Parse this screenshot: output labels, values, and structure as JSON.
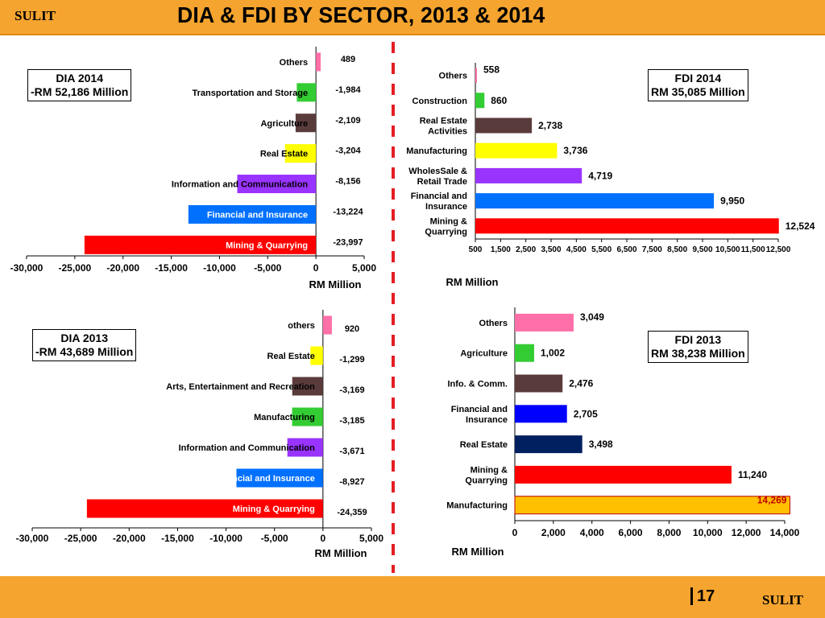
{
  "header": {
    "sulit": "SULIT",
    "title": "DIA & FDI BY SECTOR,  2013 & 2014"
  },
  "footer": {
    "page_number": "17",
    "sulit": "SULIT"
  },
  "chart_data": [
    {
      "id": "dia2014",
      "type": "bar",
      "orientation": "horizontal",
      "callout": [
        "DIA 2014",
        "-RM 52,186 Million"
      ],
      "categories": [
        "Others",
        "Transportation and Storage",
        "Agriculture",
        "Real Estate",
        "Information and Communication",
        "Financial and Insurance",
        "Mining & Quarrying"
      ],
      "values": [
        489,
        -1984,
        -2109,
        -3204,
        -8156,
        -13224,
        -23997
      ],
      "value_labels": [
        "489",
        "-1,984",
        "-2,109",
        "-3,204",
        "-8,156",
        "-13,224",
        "-23,997"
      ],
      "colors": [
        "#ff6fa8",
        "#33cc33",
        "#5a3b3b",
        "#ffff00",
        "#9933ff",
        "#0070ff",
        "#ff0000"
      ],
      "xlim": [
        -30000,
        5000
      ],
      "xticks": [
        -30000,
        -25000,
        -20000,
        -15000,
        -10000,
        -5000,
        0,
        5000
      ],
      "xtick_labels": [
        "-30,000",
        "-25,000",
        "-20,000",
        "-15,000",
        "-10,000",
        "-5,000",
        "0",
        "5,000"
      ],
      "xlabel": "RM Million"
    },
    {
      "id": "fdi2014",
      "type": "bar",
      "orientation": "horizontal",
      "callout": [
        "FDI  2014",
        "RM 35,085 Million"
      ],
      "categories": [
        "Others",
        "Construction",
        "Real Estate Activities",
        "Manufacturing",
        "WholesSale & Retail Trade",
        "Financial and Insurance",
        "Mining & Quarrying"
      ],
      "values": [
        558,
        860,
        2738,
        3736,
        4719,
        9950,
        12524
      ],
      "value_labels": [
        "558",
        "860",
        "2,738",
        "3,736",
        "4,719",
        "9,950",
        "12,524"
      ],
      "colors": [
        "#ff6fa8",
        "#33cc33",
        "#5a3b3b",
        "#ffff00",
        "#9933ff",
        "#0070ff",
        "#ff0000"
      ],
      "xlim": [
        500,
        12500
      ],
      "xticks": [
        500,
        1500,
        2500,
        3500,
        4500,
        5500,
        6500,
        7500,
        8500,
        9500,
        10500,
        11500,
        12500
      ],
      "xtick_labels": [
        "500",
        "1,500",
        "2,500",
        "3,500",
        "4,500",
        "5,500",
        "6,500",
        "7,500",
        "8,500",
        "9,500",
        "10,500",
        "11,500",
        "12,500"
      ],
      "xlabel": "RM Million"
    },
    {
      "id": "dia2013",
      "type": "bar",
      "orientation": "horizontal",
      "callout": [
        "DIA 2013",
        "-RM 43,689 Million"
      ],
      "categories": [
        "others",
        "Real Estate",
        "Arts, Entertainment and Recreation",
        "Manufacturing",
        "Information and Communication",
        "Financial and Insurance",
        "Mining & Quarrying"
      ],
      "values": [
        920,
        -1299,
        -3169,
        -3185,
        -3671,
        -8927,
        -24359
      ],
      "value_labels": [
        "920",
        "-1,299",
        "-3,169",
        "-3,185",
        "-3,671",
        "-8,927",
        "-24,359"
      ],
      "colors": [
        "#ff6fa8",
        "#ffff00",
        "#5a3b3b",
        "#33cc33",
        "#9933ff",
        "#0070ff",
        "#ff0000"
      ],
      "xlim": [
        -30000,
        5000
      ],
      "xticks": [
        -30000,
        -25000,
        -20000,
        -15000,
        -10000,
        -5000,
        0,
        5000
      ],
      "xtick_labels": [
        "-30,000",
        "-25,000",
        "-20,000",
        "-15,000",
        "-10,000",
        "-5,000",
        "0",
        "5,000"
      ],
      "xlabel": "RM Million"
    },
    {
      "id": "fdi2013",
      "type": "bar",
      "orientation": "horizontal",
      "callout": [
        "FDI  2013",
        "RM 38,238 Million"
      ],
      "categories": [
        "Others",
        "Agriculture",
        "Info. & Comm.",
        "Financial and Insurance",
        "Real Estate",
        "Mining & Quarrying",
        "Manufacturing"
      ],
      "values": [
        3049,
        1002,
        2476,
        2705,
        3498,
        11240,
        14269
      ],
      "value_labels": [
        "3,049",
        "1,002",
        "2,476",
        "2,705",
        "3,498",
        "11,240",
        "14,269"
      ],
      "colors": [
        "#ff6fa8",
        "#33cc33",
        "#5a3b3b",
        "#0000ff",
        "#002060",
        "#ff0000",
        "#ffc000"
      ],
      "xlim": [
        0,
        14000
      ],
      "xticks": [
        0,
        2000,
        4000,
        6000,
        8000,
        10000,
        12000,
        14000
      ],
      "xtick_labels": [
        "0",
        "2,000",
        "4,000",
        "6,000",
        "8,000",
        "10,000",
        "12,000",
        "14,000"
      ],
      "xlabel": "RM Million"
    }
  ]
}
